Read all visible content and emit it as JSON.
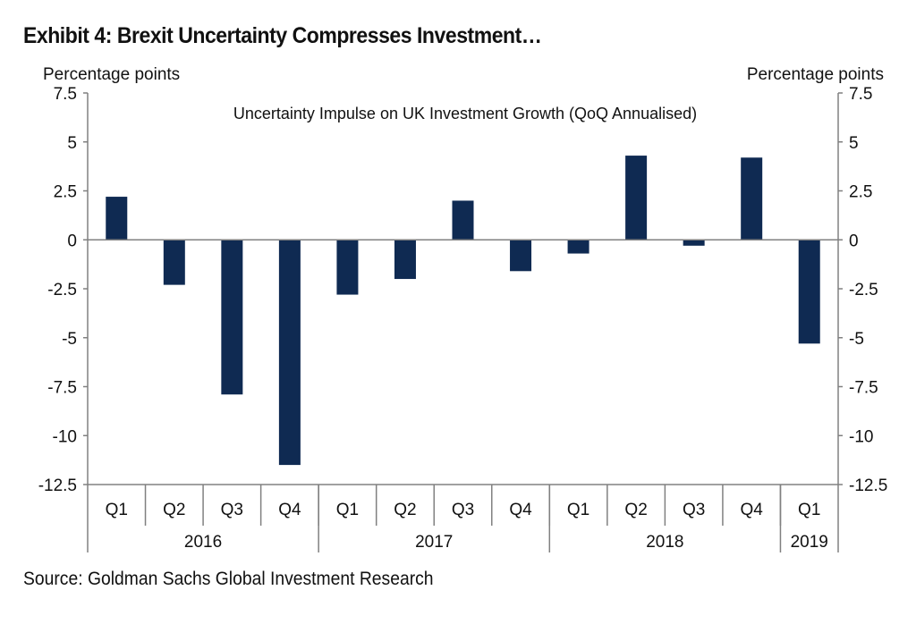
{
  "exhibit_title": "Exhibit 4: Brexit Uncertainty Compresses Investment…",
  "source": "Source: Goldman Sachs Global Investment Research",
  "colors": {
    "bar": "#0f2a52",
    "axis": "#808080",
    "text": "#111111"
  },
  "chart_data": {
    "type": "bar",
    "title": "Uncertainty Impulse on UK Investment Growth (QoQ Annualised)",
    "ylabel_left": "Percentage points",
    "ylabel_right": "Percentage points",
    "ylim": [
      -12.5,
      7.5
    ],
    "yticks": [
      7.5,
      5,
      2.5,
      0,
      -2.5,
      -5,
      -7.5,
      -10,
      -12.5
    ],
    "ytick_labels": [
      "7.5",
      "5",
      "2.5",
      "0",
      "-2.5",
      "-5",
      "-7.5",
      "-10",
      "-12.5"
    ],
    "categories": [
      "Q1",
      "Q2",
      "Q3",
      "Q4",
      "Q1",
      "Q2",
      "Q3",
      "Q4",
      "Q1",
      "Q2",
      "Q3",
      "Q4",
      "Q1"
    ],
    "values": [
      2.2,
      -2.3,
      -7.9,
      -11.5,
      -2.8,
      -2.0,
      2.0,
      -1.6,
      -0.7,
      4.3,
      -0.3,
      4.2,
      -5.3
    ],
    "year_groups": [
      {
        "label": "2016",
        "count": 4
      },
      {
        "label": "2017",
        "count": 4
      },
      {
        "label": "2018",
        "count": 4
      },
      {
        "label": "2019",
        "count": 1
      }
    ],
    "grid": false,
    "legend": "none"
  }
}
